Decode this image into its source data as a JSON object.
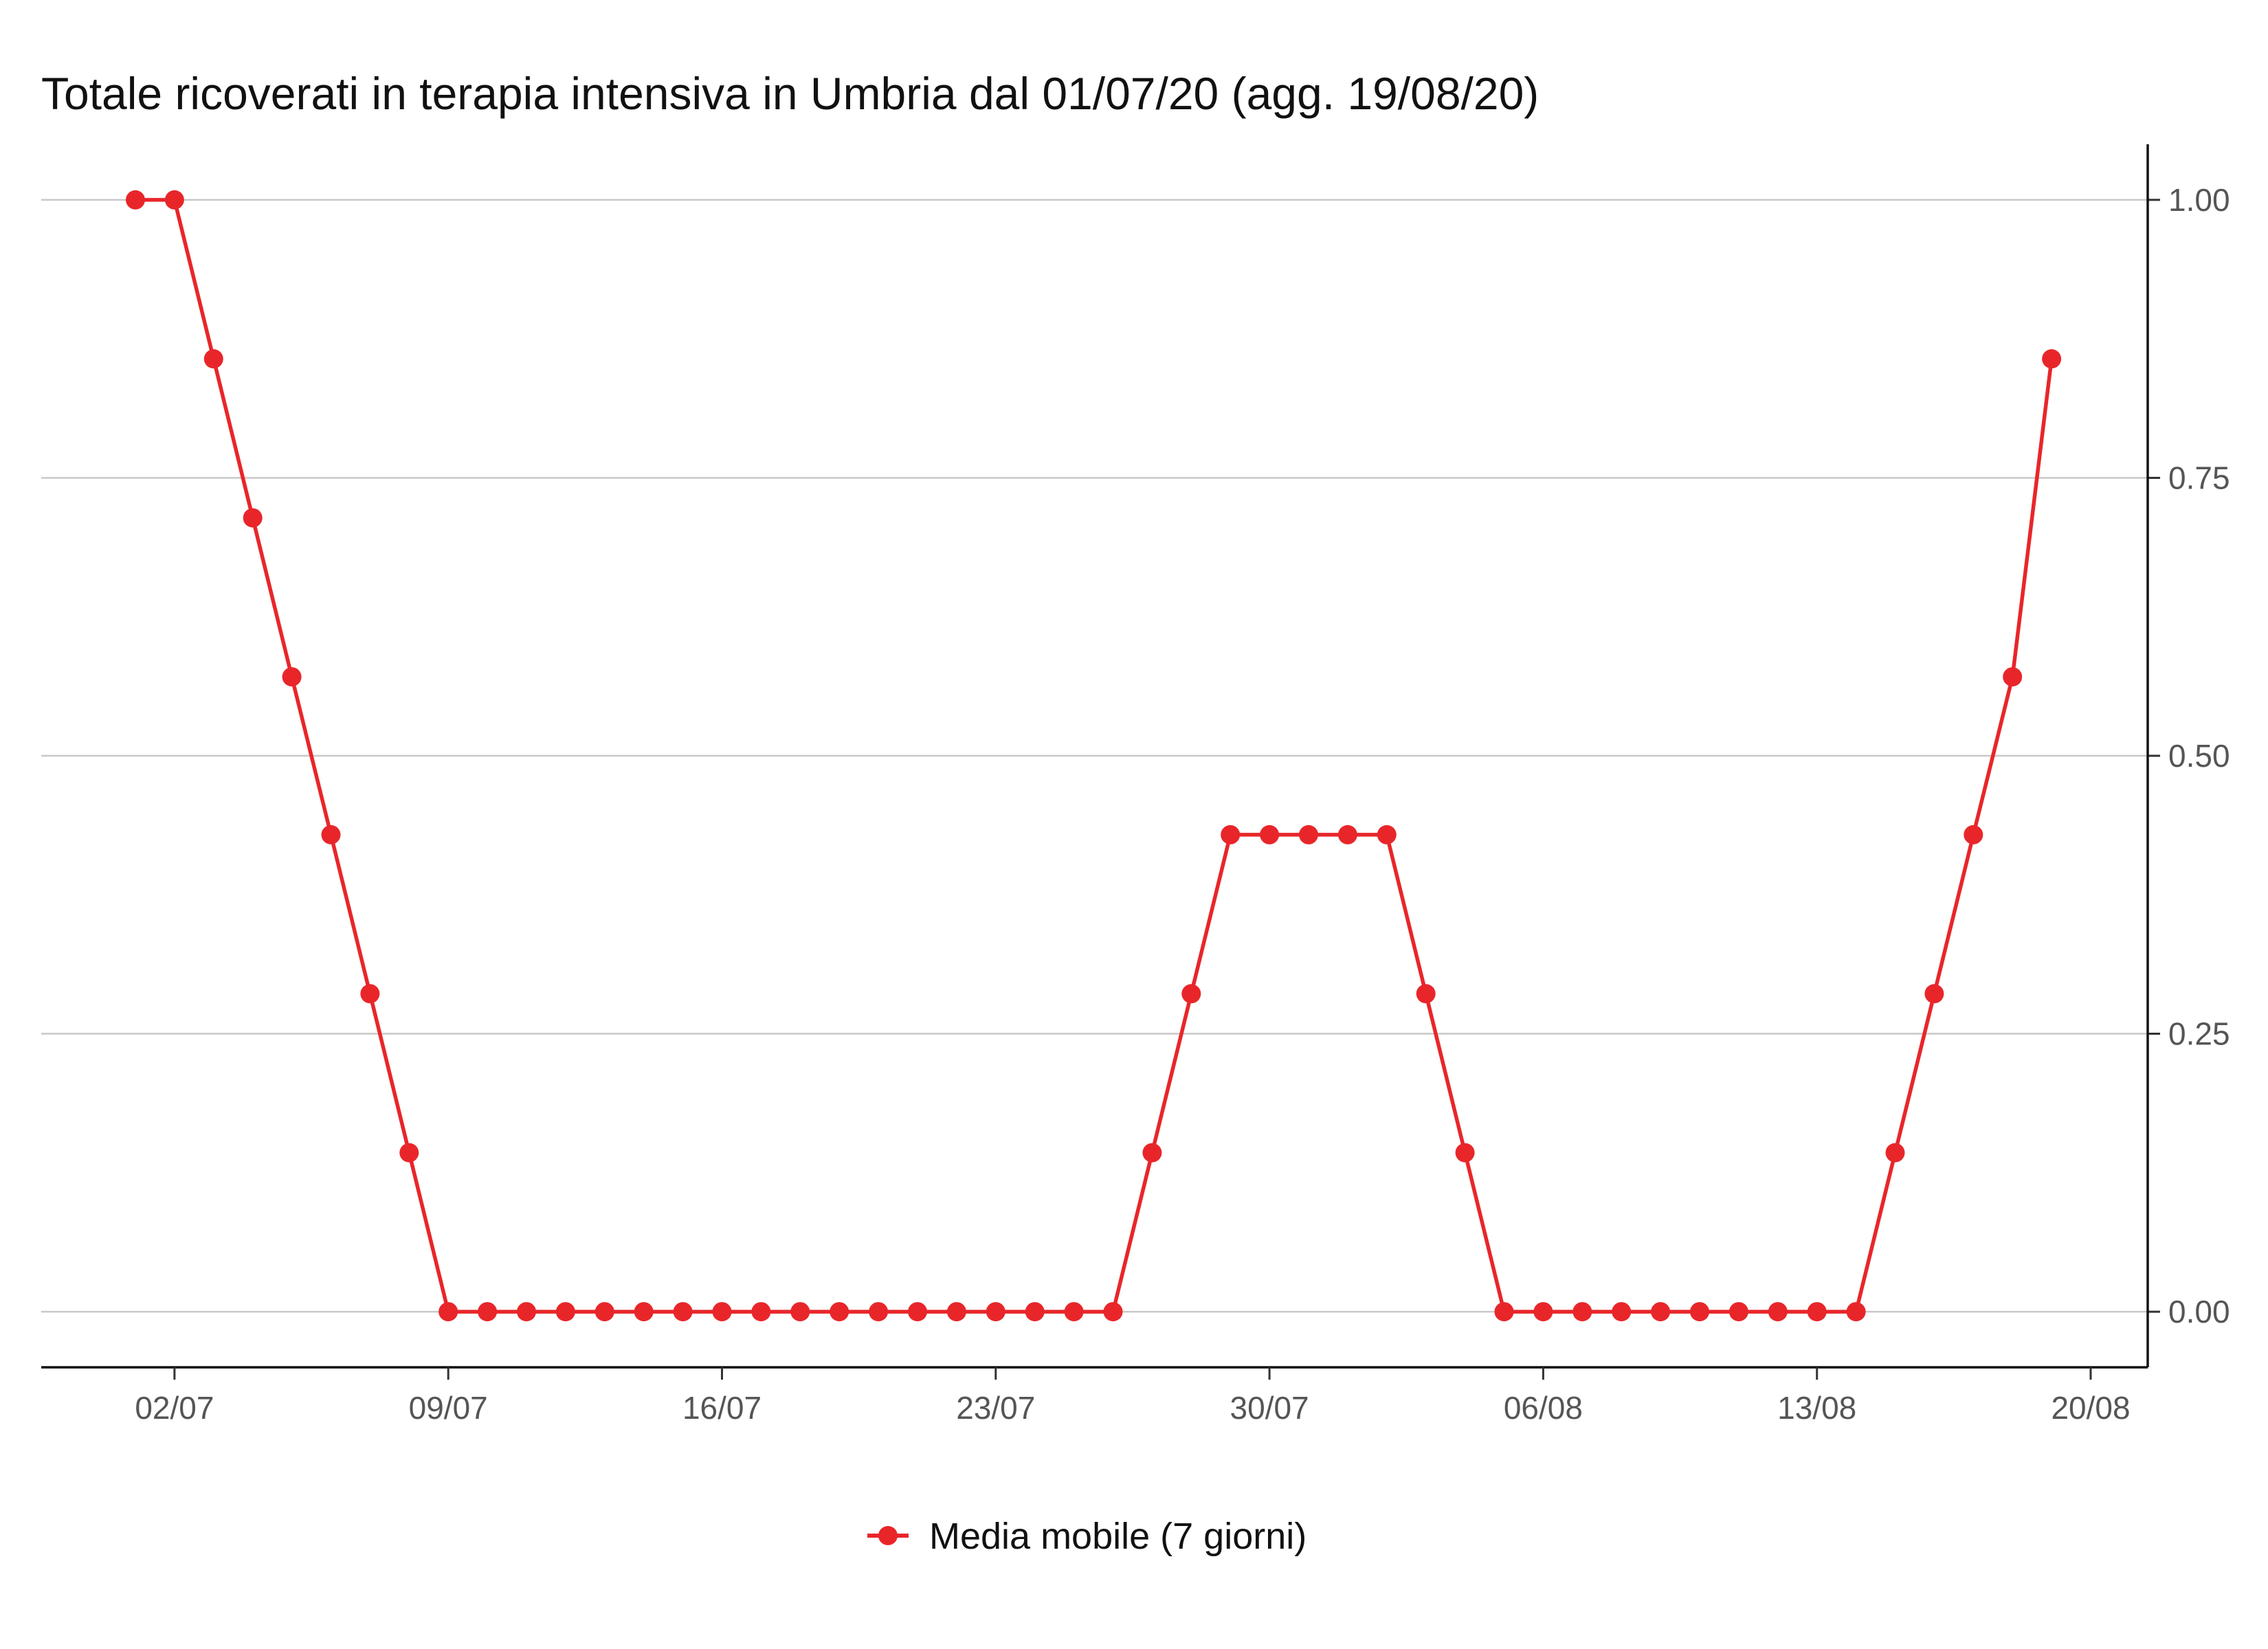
{
  "chart_data": {
    "type": "line",
    "title": "Totale ricoverati in terapia intensiva in Umbria dal 01/07/20 (agg. 19/08/20)",
    "xlabel": "",
    "ylabel": "",
    "x_start": "2020-07-01",
    "x": [
      "01/07",
      "02/07",
      "03/07",
      "04/07",
      "05/07",
      "06/07",
      "07/07",
      "08/07",
      "09/07",
      "10/07",
      "11/07",
      "12/07",
      "13/07",
      "14/07",
      "15/07",
      "16/07",
      "17/07",
      "18/07",
      "19/07",
      "20/07",
      "21/07",
      "22/07",
      "23/07",
      "24/07",
      "25/07",
      "26/07",
      "27/07",
      "28/07",
      "29/07",
      "30/07",
      "31/07",
      "01/08",
      "02/08",
      "03/08",
      "04/08",
      "05/08",
      "06/08",
      "07/08",
      "08/08",
      "09/08",
      "10/08",
      "11/08",
      "12/08",
      "13/08",
      "14/08",
      "15/08",
      "16/08",
      "17/08",
      "18/08",
      "19/08"
    ],
    "x_ticks": [
      "02/07",
      "09/07",
      "16/07",
      "23/07",
      "30/07",
      "06/08",
      "13/08",
      "20/08"
    ],
    "y_ticks": [
      "0.00",
      "0.25",
      "0.50",
      "0.75",
      "1.00"
    ],
    "ylim": [
      -0.05,
      1.05
    ],
    "y_axis_position": "right",
    "grid": "horizontal major",
    "legend_position": "bottom",
    "color": "#e8262a",
    "series": [
      {
        "name": "Media mobile (7 giorni)",
        "values": [
          1.0,
          1.0,
          0.857,
          0.714,
          0.571,
          0.429,
          0.286,
          0.143,
          0,
          0,
          0,
          0,
          0,
          0,
          0,
          0,
          0,
          0,
          0,
          0,
          0,
          0,
          0,
          0,
          0,
          0,
          0.143,
          0.286,
          0.429,
          0.429,
          0.429,
          0.429,
          0.429,
          0.286,
          0.143,
          0,
          0,
          0,
          0,
          0,
          0,
          0,
          0,
          0,
          0,
          0.143,
          0.286,
          0.429,
          0.571,
          0.857
        ]
      }
    ]
  }
}
